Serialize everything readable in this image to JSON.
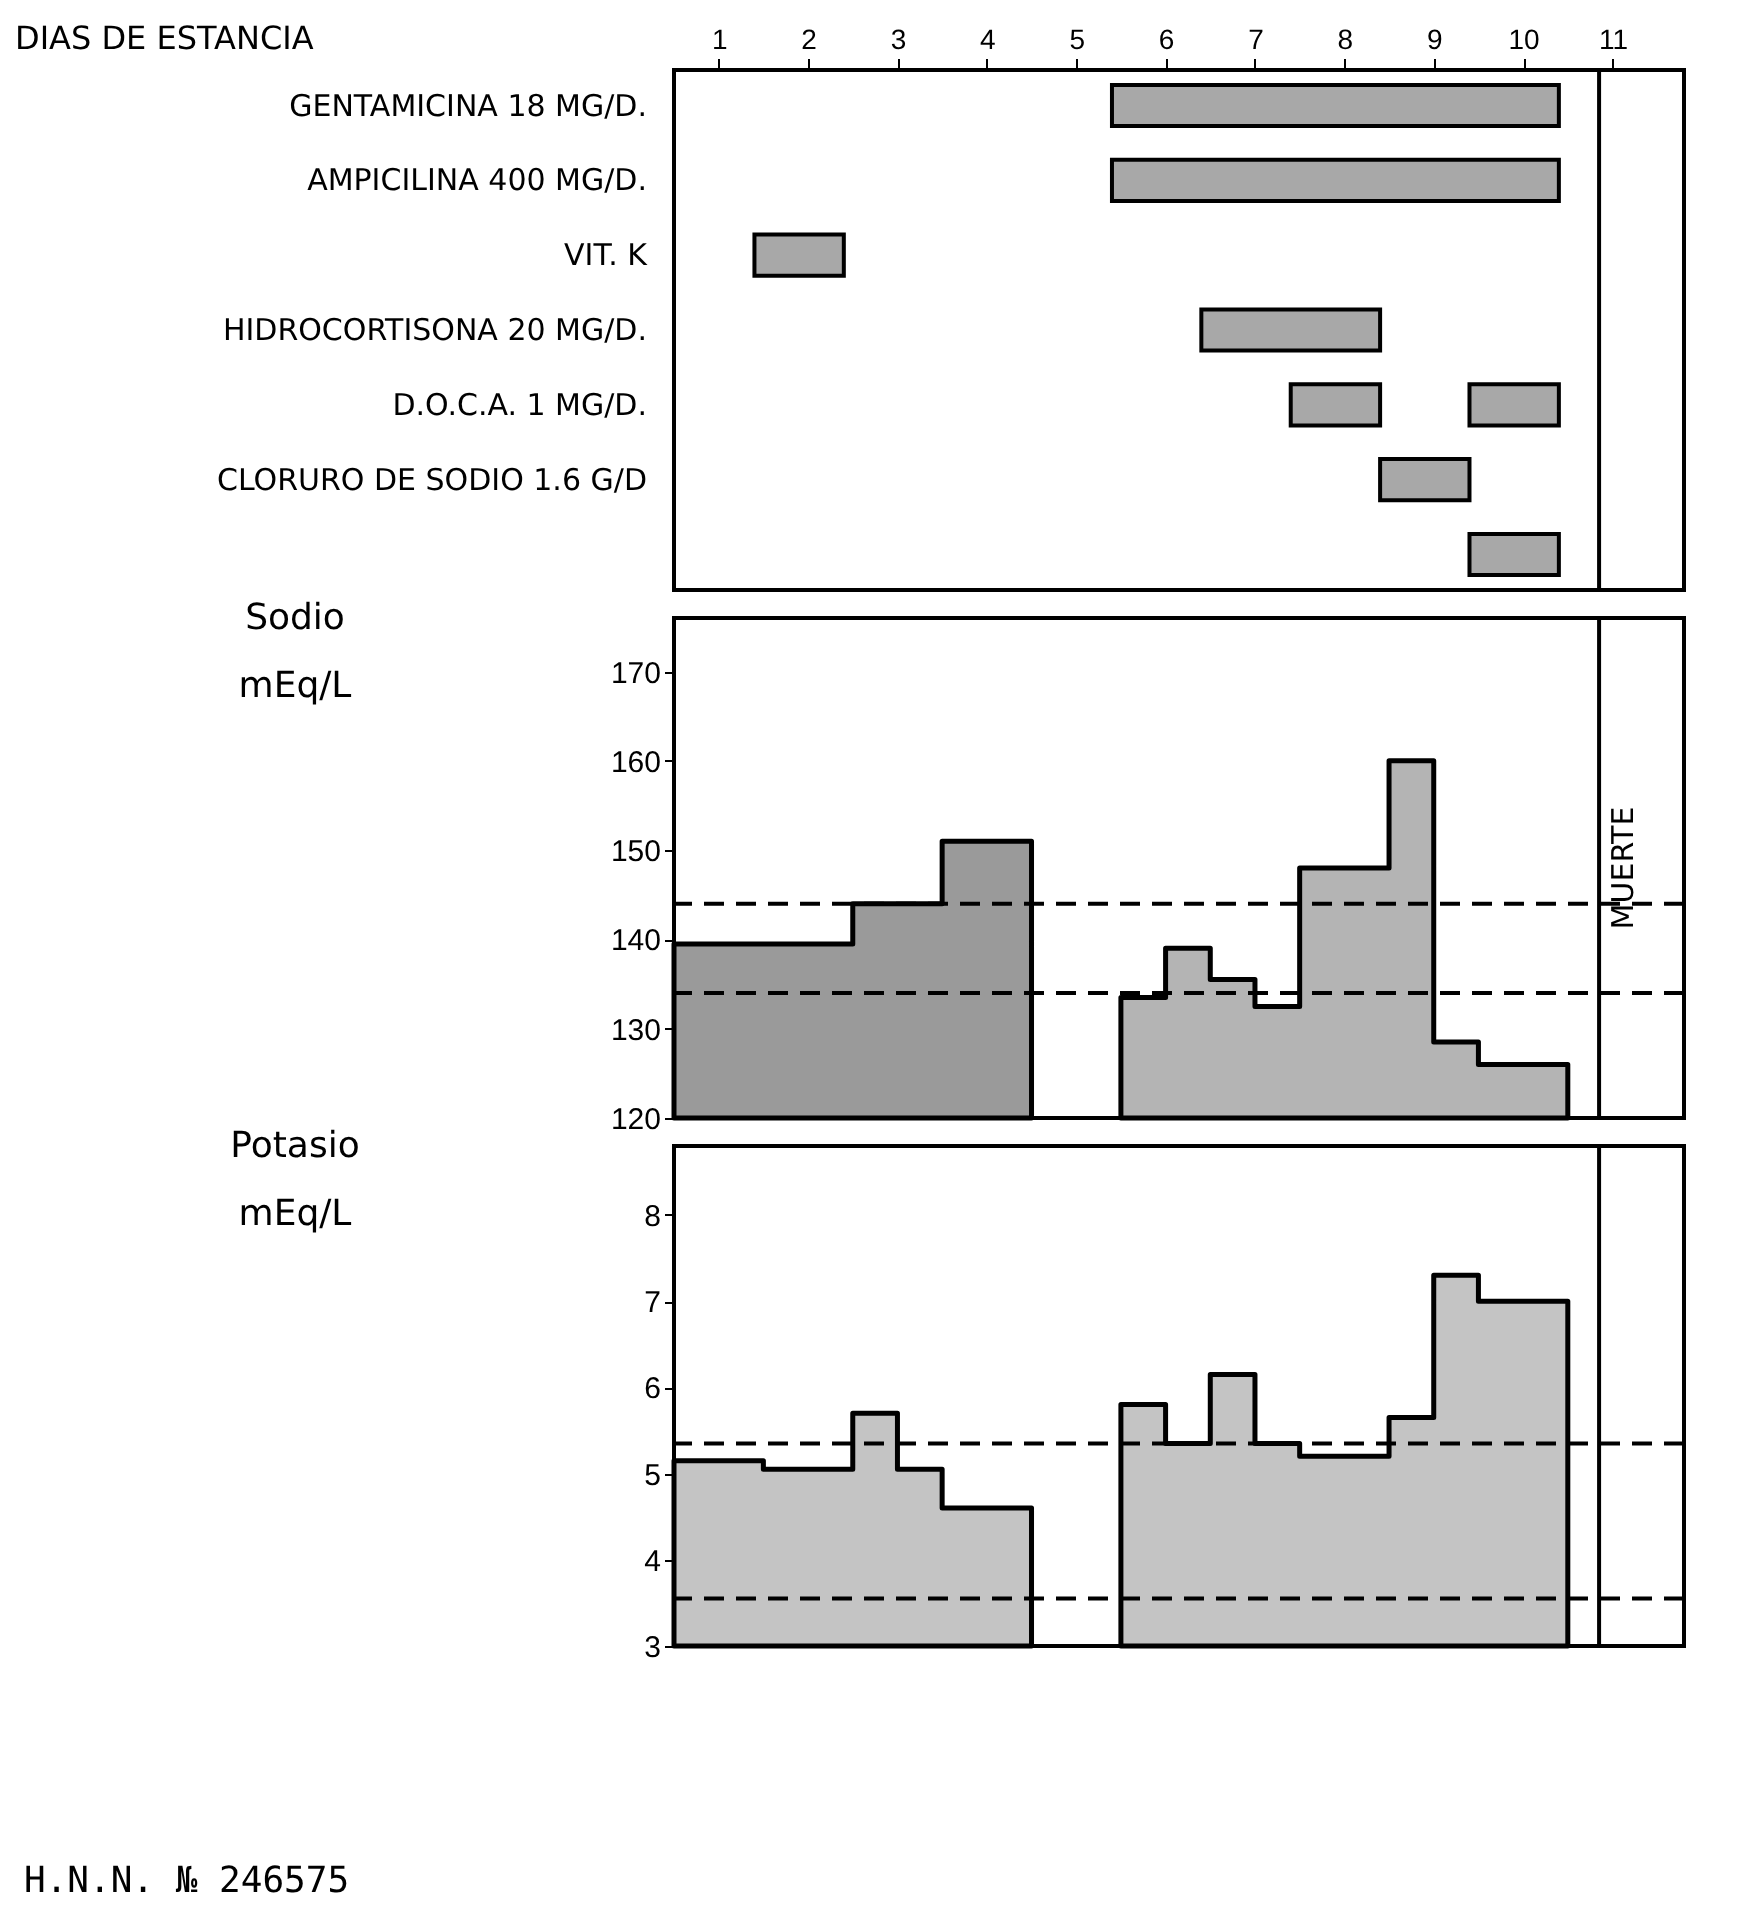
{
  "chart_data": [
    {
      "type": "bar",
      "orientation": "horizontal",
      "xlabel": "DIAS DE ESTANCIA",
      "categories": [
        "GENTAMICINA 18 MG/D.",
        "AMPICILINA 400 MG/D.",
        "VIT. K",
        "HIDROCORTISONA 20 MG/D.",
        "D.O.C.A. 1 MG/D.",
        "CLORURO DE SODIO 1.6 G/D",
        null
      ],
      "series": [
        {
          "color": "#a8a8a8",
          "base": [
            5.4,
            5.4,
            1.4,
            6.4,
            7.4,
            8.4,
            9.4
          ],
          "values": [
            5.0,
            5.0,
            1.0,
            2.0,
            1.0,
            1.0,
            1.0
          ]
        },
        {
          "color": "#a8a8a8",
          "base": [
            null,
            null,
            null,
            null,
            9.4,
            null,
            null
          ],
          "values": [
            null,
            null,
            null,
            null,
            1.0,
            null,
            null
          ]
        }
      ],
      "xlim": [
        0.5,
        11.8
      ],
      "xticks": [
        1,
        2,
        3,
        4,
        5,
        6,
        7,
        8,
        9,
        10,
        11
      ],
      "grid": false,
      "ref_lines": [
        {
          "axis": "x",
          "value": 10.85,
          "color": "#000000",
          "line_style": "solid"
        }
      ]
    },
    {
      "type": "area",
      "ylabel": "Sodio mEq/L",
      "series": [
        {
          "color": "#9a9a9a",
          "x": [
            0.5,
            2.5,
            3.5,
            4.5
          ],
          "values": [
            139.5,
            144,
            151,
            151
          ]
        },
        {
          "color": "#b4b4b4",
          "x": [
            5.5,
            6,
            6.5,
            7,
            7.5,
            8.5,
            9,
            9.5,
            10.5
          ],
          "values": [
            133.5,
            139,
            135.5,
            132.5,
            148,
            160,
            128.5,
            126,
            126
          ]
        }
      ],
      "xlim": [
        0.5,
        11.8
      ],
      "ylim": [
        120,
        176
      ],
      "yticks": [
        120,
        130,
        140,
        150,
        160,
        170
      ],
      "tick_labels": "y",
      "grid": false,
      "ref_lines": [
        {
          "axis": "y",
          "value": 144,
          "line_style": "dashed",
          "color": "#000000"
        },
        {
          "axis": "y",
          "value": 134,
          "line_style": "dashed",
          "color": "#000000"
        },
        {
          "axis": "x",
          "value": 10.85,
          "label": "MUERTE",
          "line_style": "solid",
          "color": "#000000"
        }
      ]
    },
    {
      "type": "area",
      "ylabel": "Potasio mEq/L",
      "series": [
        {
          "color": "#c4c4c4",
          "x": [
            0.5,
            1.5,
            2.5,
            3,
            3.5,
            4.5
          ],
          "values": [
            5.15,
            5.05,
            5.7,
            5.05,
            4.6,
            4.6
          ]
        },
        {
          "color": "#c4c4c4",
          "x": [
            5.5,
            6,
            6.5,
            7,
            7.5,
            8.5,
            9,
            9.5,
            10.5
          ],
          "values": [
            5.8,
            5.35,
            6.15,
            5.35,
            5.2,
            5.65,
            7.3,
            7.0,
            7.0
          ]
        }
      ],
      "xlim": [
        0.5,
        11.8
      ],
      "ylim": [
        3,
        8.8
      ],
      "yticks": [
        3,
        4,
        5,
        6,
        7,
        8
      ],
      "tick_labels": "y",
      "grid": false,
      "ref_lines": [
        {
          "axis": "y",
          "value": 5.35,
          "line_style": "dashed",
          "color": "#000000"
        },
        {
          "axis": "y",
          "value": 3.55,
          "line_style": "dashed",
          "color": "#000000"
        },
        {
          "axis": "x",
          "value": 10.85,
          "line_style": "solid",
          "color": "#000000"
        }
      ],
      "annotations": [
        "H.N.N. № 246575"
      ]
    }
  ]
}
